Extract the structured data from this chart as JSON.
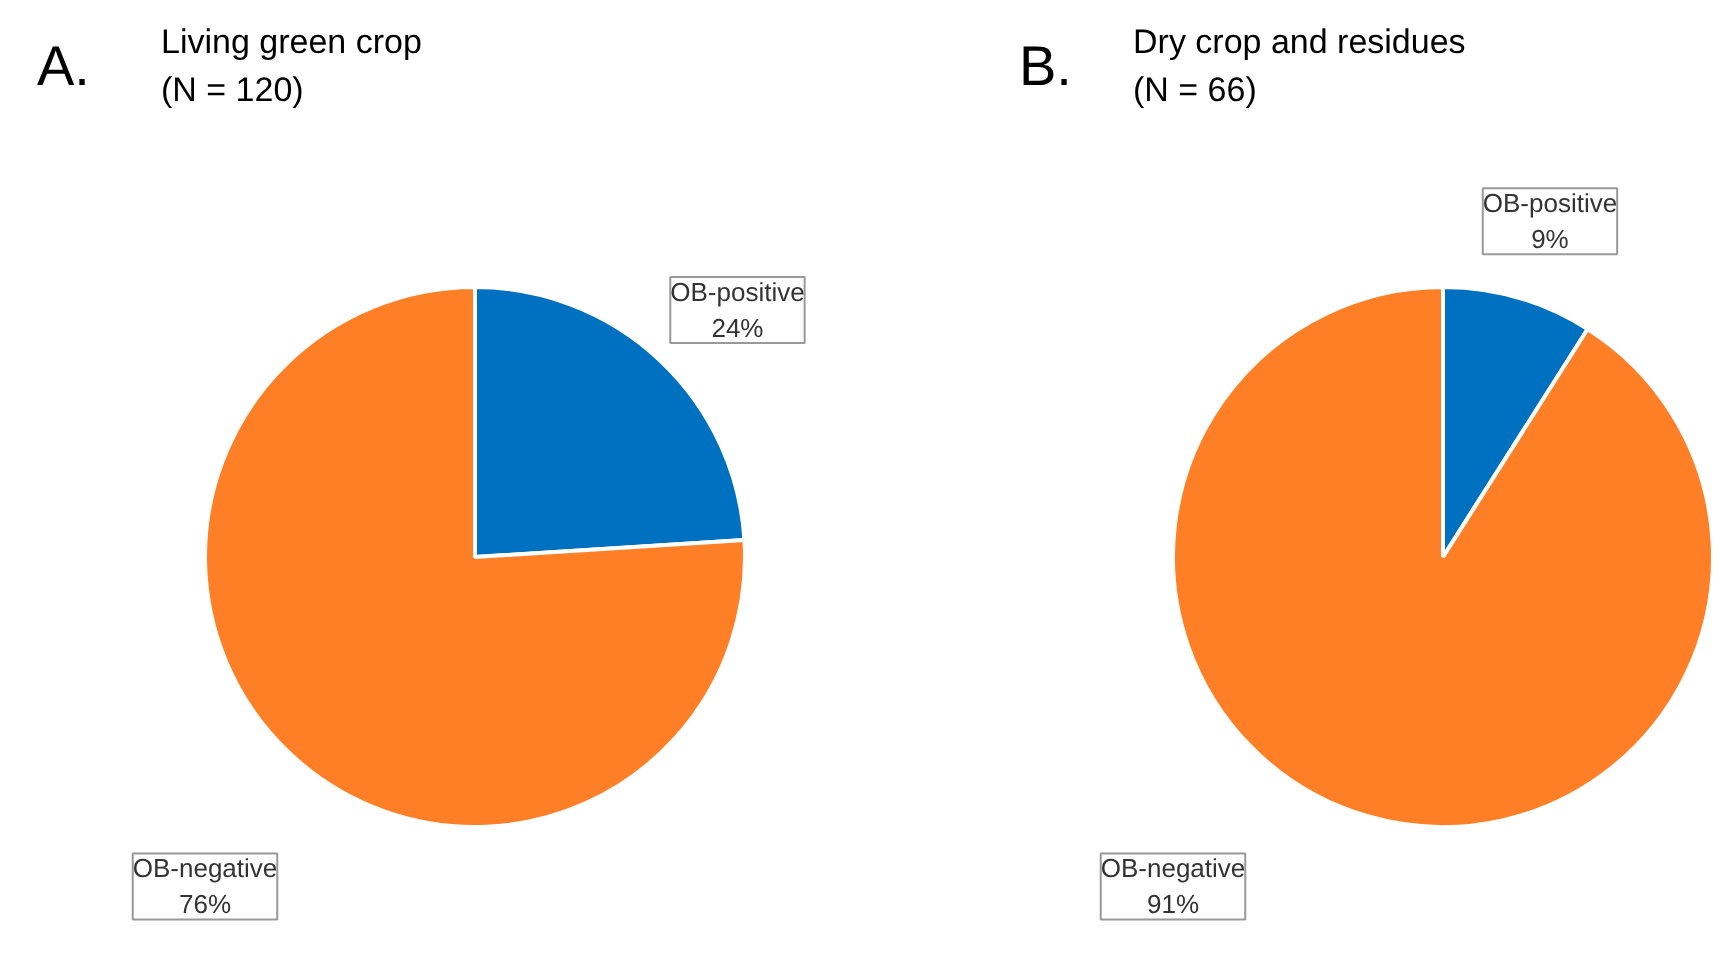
{
  "chart_data": [
    {
      "type": "pie",
      "title": "Living green crop",
      "subtitle": "(N = 120)",
      "annotations": [
        "A."
      ],
      "categories": [
        "OB-positive",
        "OB-negative"
      ],
      "values": [
        24,
        76
      ],
      "colors": [
        "#0070c0",
        "#ff7f27"
      ],
      "value_labels": [
        "24%",
        "76%"
      ]
    },
    {
      "type": "pie",
      "title": "Dry crop and residues",
      "subtitle": "(N = 66)",
      "annotations": [
        "B."
      ],
      "categories": [
        "OB-positive",
        "OB-negative"
      ],
      "values": [
        9,
        91
      ],
      "colors": [
        "#0070c0",
        "#ff7f27"
      ],
      "value_labels": [
        "9%",
        "91%"
      ]
    }
  ]
}
